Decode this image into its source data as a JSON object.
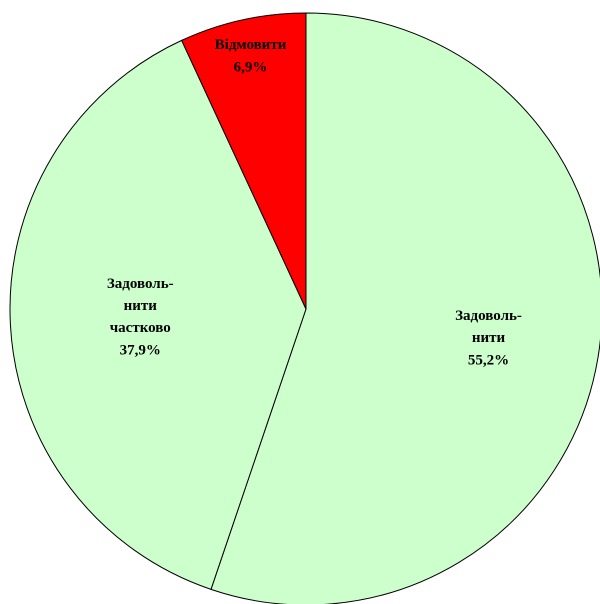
{
  "chart_data": {
    "type": "pie",
    "categories": [
      "Задоволь-\nнити",
      "Задоволь-\nнити\nчастково",
      "Відмовити"
    ],
    "values": [
      55.2,
      37.9,
      6.9
    ],
    "value_labels": [
      "55,2%",
      "37,9%",
      "6,9%"
    ],
    "colors": [
      "#ccffcc",
      "#ccffcc",
      "#ff0000"
    ]
  }
}
